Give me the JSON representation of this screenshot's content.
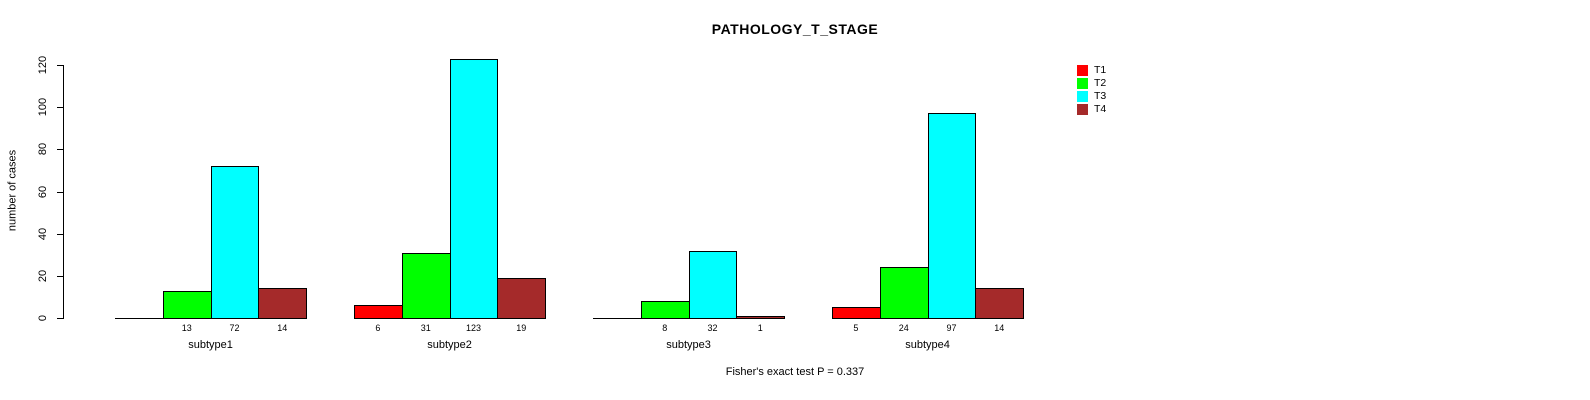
{
  "title": "PATHOLOGY_T_STAGE",
  "y_axis_label": "number of cases",
  "annotation": "Fisher's exact test P = 0.337",
  "legend": {
    "position": "topright",
    "items": [
      {
        "label": "T1",
        "color": "#FF0000"
      },
      {
        "label": "T2",
        "color": "#00FF00"
      },
      {
        "label": "T3",
        "color": "#00FFFF"
      },
      {
        "label": "T4",
        "color": "#A52A2A"
      }
    ]
  },
  "chart_data": {
    "type": "bar",
    "title": "PATHOLOGY_T_STAGE",
    "xlabel": "",
    "ylabel": "number of cases",
    "categories": [
      "subtype1",
      "subtype2",
      "subtype3",
      "subtype4"
    ],
    "series": [
      {
        "name": "T1",
        "color": "#FF0000",
        "values": [
          0,
          6,
          0,
          5
        ]
      },
      {
        "name": "T2",
        "color": "#00FF00",
        "values": [
          13,
          31,
          8,
          24
        ]
      },
      {
        "name": "T3",
        "color": "#00FFFF",
        "values": [
          72,
          123,
          32,
          97
        ]
      },
      {
        "name": "T4",
        "color": "#A52A2A",
        "values": [
          14,
          19,
          1,
          14
        ]
      }
    ],
    "ylim": [
      0,
      120
    ],
    "yticks": [
      0,
      20,
      40,
      60,
      80,
      100,
      120
    ],
    "grid": false,
    "legend_position": "topright",
    "bar_borders": "#000000",
    "value_labels": "shown under each bar, omitted when value is 0",
    "annotation": "Fisher's exact test P = 0.337"
  }
}
